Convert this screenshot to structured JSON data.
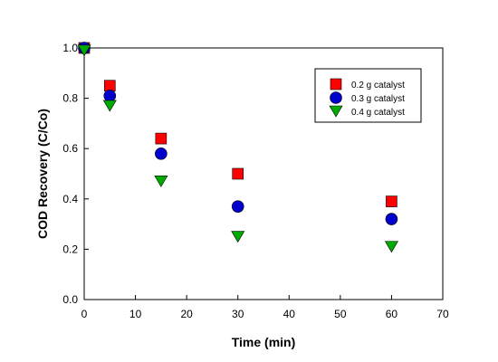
{
  "chart_data": {
    "type": "scatter",
    "title": "",
    "xlabel": "Time (min)",
    "ylabel": "COD Recovery (C/Co)",
    "xlim": [
      0,
      70
    ],
    "ylim": [
      0.0,
      1.0
    ],
    "xticks": [
      "0",
      "10",
      "20",
      "30",
      "40",
      "50",
      "60",
      "70"
    ],
    "yticks": [
      "0.0",
      "0.2",
      "0.4",
      "0.6",
      "0.8",
      "1.0"
    ],
    "grid": false,
    "legend_position": "top-right",
    "series": [
      {
        "name": "0.2 g catalyst",
        "marker": "square",
        "color": "#ff0000",
        "x": [
          0,
          5,
          15,
          30,
          60
        ],
        "y": [
          1.0,
          0.85,
          0.64,
          0.5,
          0.39
        ]
      },
      {
        "name": "0.3 g catalyst",
        "marker": "circle",
        "color": "#0000cc",
        "x": [
          0,
          5,
          15,
          30,
          60
        ],
        "y": [
          1.0,
          0.81,
          0.58,
          0.37,
          0.32
        ]
      },
      {
        "name": "0.4 g catalyst",
        "marker": "triangle-down",
        "color": "#00aa00",
        "x": [
          0,
          5,
          15,
          30,
          60
        ],
        "y": [
          0.99,
          0.77,
          0.47,
          0.25,
          0.21
        ]
      }
    ]
  }
}
